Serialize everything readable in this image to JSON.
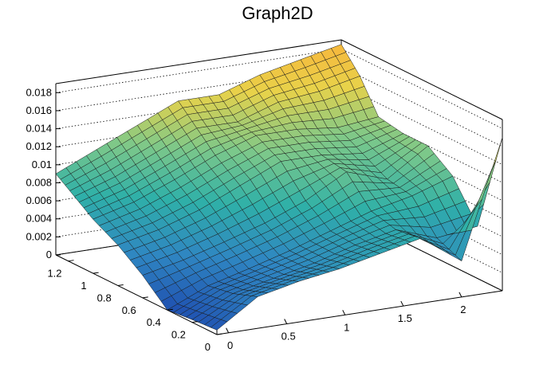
{
  "title": "Graph2D",
  "chart_data": {
    "type": "surface",
    "title": "Graph2D",
    "xlabel": "",
    "ylabel": "",
    "zlabel": "",
    "xlim": [
      -0.1,
      2.35
    ],
    "ylim": [
      0,
      1.3
    ],
    "zlim": [
      0,
      0.019
    ],
    "x_ticks": [
      0,
      0.5,
      1,
      1.5,
      2
    ],
    "x_tick_labels": [
      "0",
      "0.5",
      "1",
      "1.5",
      "2"
    ],
    "y_ticks": [
      0,
      0.2,
      0.4,
      0.6,
      0.8,
      1,
      1.2
    ],
    "y_tick_labels": [
      "0",
      "0.2",
      "0.4",
      "0.6",
      "0.8",
      "1",
      "1.2"
    ],
    "z_ticks": [
      0,
      0.002,
      0.004,
      0.006,
      0.008,
      0.01,
      0.012,
      0.014,
      0.016,
      0.018
    ],
    "z_tick_labels": [
      "0",
      "0.002",
      "0.004",
      "0.006",
      "0.008",
      "0.01",
      "0.012",
      "0.014",
      "0.016",
      "0.018"
    ],
    "grid": true,
    "colormap": [
      "#1f4fb0",
      "#2f86c2",
      "#2fb0a8",
      "#7cc88a",
      "#e8d24a",
      "#f9b43a"
    ],
    "x": [
      -0.1,
      0.25,
      0.6,
      0.95,
      1.3,
      1.65,
      2.0,
      2.35
    ],
    "y": [
      0,
      0.2,
      0.4,
      0.6,
      0.8,
      1.0,
      1.15,
      1.3
    ],
    "z": [
      [
        0.0005,
        0.0035,
        0.0045,
        0.0052,
        0.0062,
        0.0072,
        0.004,
        0.017
      ],
      [
        0.0003,
        0.0025,
        0.0035,
        0.0045,
        0.0058,
        0.0068,
        0.0052,
        0.0058
      ],
      [
        0.0,
        0.002,
        0.0032,
        0.0045,
        0.006,
        0.0075,
        0.0085,
        0.01
      ],
      [
        0.0025,
        0.0035,
        0.0048,
        0.0062,
        0.008,
        0.0105,
        0.009,
        0.012
      ],
      [
        0.0045,
        0.0055,
        0.007,
        0.009,
        0.011,
        0.011,
        0.0105,
        0.012
      ],
      [
        0.006,
        0.0072,
        0.009,
        0.011,
        0.0125,
        0.0125,
        0.012,
        0.0125
      ],
      [
        0.0075,
        0.009,
        0.011,
        0.013,
        0.013,
        0.0145,
        0.015,
        0.016
      ],
      [
        0.009,
        0.011,
        0.013,
        0.015,
        0.015,
        0.0165,
        0.0175,
        0.0185
      ]
    ]
  }
}
